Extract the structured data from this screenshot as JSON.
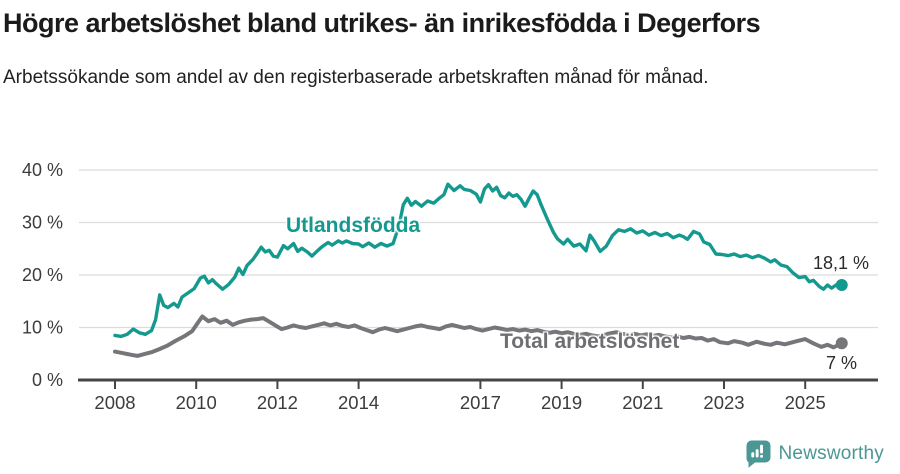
{
  "header": {
    "title": "Högre arbetslöshet bland utrikes- än inrikesfödda i Degerfors",
    "subtitle": "Arbetssökande som andel av den registerbaserade arbetskraften månad för månad."
  },
  "chart_data": {
    "type": "line",
    "title": "Högre arbetslöshet bland utrikes- än inrikesfödda i Degerfors",
    "subtitle": "Arbetssökande som andel av den registerbaserade arbetskraften månad för månad.",
    "unit": "%",
    "grid": true,
    "legend_position": "inline-labels",
    "colors": {
      "grid": "#dcdcdc",
      "axis": "#454545",
      "tick_text": "#3c3c3c",
      "accent_teal": "#14998f",
      "neutral_gray": "#76767a"
    },
    "y_axis": {
      "range": [
        0,
        40
      ],
      "ticks": [
        {
          "value": 0,
          "label": "0 %"
        },
        {
          "value": 10,
          "label": "10 %"
        },
        {
          "value": 20,
          "label": "20 %"
        },
        {
          "value": 30,
          "label": "30 %"
        },
        {
          "value": 40,
          "label": "40 %"
        }
      ]
    },
    "x_axis": {
      "range": [
        2007.1,
        2026.8
      ],
      "ticks": [
        {
          "value": 2008,
          "label": "2008"
        },
        {
          "value": 2010,
          "label": "2010"
        },
        {
          "value": 2012,
          "label": "2012"
        },
        {
          "value": 2014,
          "label": "2014"
        },
        {
          "value": 2017,
          "label": "2017"
        },
        {
          "value": 2019,
          "label": "2019"
        },
        {
          "value": 2021,
          "label": "2021"
        },
        {
          "value": 2023,
          "label": "2023"
        },
        {
          "value": 2025,
          "label": "2025"
        }
      ]
    },
    "series": [
      {
        "id": "utlandsfodda",
        "name": "Utlandsfödda",
        "color": "#14998f",
        "stroke_width": 3.4,
        "end_label": "18,1 %",
        "end_value": 18.1,
        "points": [
          [
            2008.0,
            8.5
          ],
          [
            2008.15,
            8.3
          ],
          [
            2008.3,
            8.7
          ],
          [
            2008.45,
            9.7
          ],
          [
            2008.6,
            9.0
          ],
          [
            2008.75,
            8.7
          ],
          [
            2008.9,
            9.4
          ],
          [
            2009.0,
            11.5
          ],
          [
            2009.1,
            16.2
          ],
          [
            2009.2,
            14.2
          ],
          [
            2009.3,
            13.8
          ],
          [
            2009.45,
            14.6
          ],
          [
            2009.55,
            13.9
          ],
          [
            2009.65,
            15.8
          ],
          [
            2009.8,
            16.6
          ],
          [
            2009.95,
            17.4
          ],
          [
            2010.1,
            19.4
          ],
          [
            2010.2,
            19.8
          ],
          [
            2010.3,
            18.5
          ],
          [
            2010.4,
            19.1
          ],
          [
            2010.5,
            18.3
          ],
          [
            2010.65,
            17.3
          ],
          [
            2010.8,
            18.2
          ],
          [
            2010.95,
            19.6
          ],
          [
            2011.05,
            21.3
          ],
          [
            2011.15,
            20.1
          ],
          [
            2011.25,
            21.8
          ],
          [
            2011.4,
            23.0
          ],
          [
            2011.5,
            24.1
          ],
          [
            2011.6,
            25.3
          ],
          [
            2011.7,
            24.4
          ],
          [
            2011.8,
            24.7
          ],
          [
            2011.9,
            23.6
          ],
          [
            2012.0,
            23.4
          ],
          [
            2012.15,
            25.6
          ],
          [
            2012.25,
            25.0
          ],
          [
            2012.4,
            26.0
          ],
          [
            2012.5,
            24.5
          ],
          [
            2012.6,
            25.1
          ],
          [
            2012.75,
            24.3
          ],
          [
            2012.85,
            23.6
          ],
          [
            2013.0,
            24.7
          ],
          [
            2013.1,
            25.4
          ],
          [
            2013.25,
            26.2
          ],
          [
            2013.35,
            25.7
          ],
          [
            2013.5,
            26.5
          ],
          [
            2013.6,
            26.1
          ],
          [
            2013.7,
            26.5
          ],
          [
            2013.85,
            26.0
          ],
          [
            2014.0,
            25.9
          ],
          [
            2014.1,
            25.4
          ],
          [
            2014.25,
            26.1
          ],
          [
            2014.4,
            25.3
          ],
          [
            2014.55,
            26.0
          ],
          [
            2014.7,
            25.5
          ],
          [
            2014.85,
            26.0
          ],
          [
            2015.0,
            29.5
          ],
          [
            2015.1,
            33.4
          ],
          [
            2015.2,
            34.6
          ],
          [
            2015.3,
            33.3
          ],
          [
            2015.4,
            34.0
          ],
          [
            2015.55,
            33.1
          ],
          [
            2015.7,
            34.1
          ],
          [
            2015.85,
            33.7
          ],
          [
            2016.0,
            34.7
          ],
          [
            2016.1,
            35.3
          ],
          [
            2016.2,
            37.3
          ],
          [
            2016.35,
            36.1
          ],
          [
            2016.5,
            37.0
          ],
          [
            2016.6,
            36.3
          ],
          [
            2016.75,
            36.1
          ],
          [
            2016.9,
            35.4
          ],
          [
            2017.0,
            33.9
          ],
          [
            2017.1,
            36.4
          ],
          [
            2017.2,
            37.2
          ],
          [
            2017.3,
            36.0
          ],
          [
            2017.4,
            36.7
          ],
          [
            2017.5,
            35.1
          ],
          [
            2017.6,
            34.7
          ],
          [
            2017.7,
            35.6
          ],
          [
            2017.8,
            35.0
          ],
          [
            2017.9,
            35.3
          ],
          [
            2018.0,
            34.4
          ],
          [
            2018.1,
            33.1
          ],
          [
            2018.2,
            34.6
          ],
          [
            2018.3,
            36.0
          ],
          [
            2018.4,
            35.3
          ],
          [
            2018.5,
            33.3
          ],
          [
            2018.65,
            30.6
          ],
          [
            2018.8,
            28.1
          ],
          [
            2018.9,
            26.9
          ],
          [
            2019.05,
            25.9
          ],
          [
            2019.15,
            26.8
          ],
          [
            2019.3,
            25.5
          ],
          [
            2019.45,
            25.9
          ],
          [
            2019.6,
            24.6
          ],
          [
            2019.7,
            27.6
          ],
          [
            2019.8,
            26.5
          ],
          [
            2019.95,
            24.5
          ],
          [
            2020.1,
            25.5
          ],
          [
            2020.25,
            27.5
          ],
          [
            2020.4,
            28.6
          ],
          [
            2020.55,
            28.3
          ],
          [
            2020.7,
            28.8
          ],
          [
            2020.85,
            28.0
          ],
          [
            2021.0,
            28.4
          ],
          [
            2021.15,
            27.6
          ],
          [
            2021.3,
            28.1
          ],
          [
            2021.45,
            27.5
          ],
          [
            2021.6,
            27.9
          ],
          [
            2021.75,
            27.1
          ],
          [
            2021.9,
            27.6
          ],
          [
            2022.0,
            27.3
          ],
          [
            2022.1,
            26.8
          ],
          [
            2022.25,
            28.3
          ],
          [
            2022.4,
            27.8
          ],
          [
            2022.5,
            26.3
          ],
          [
            2022.65,
            25.8
          ],
          [
            2022.8,
            24.0
          ],
          [
            2022.95,
            23.9
          ],
          [
            2023.1,
            23.7
          ],
          [
            2023.25,
            24.0
          ],
          [
            2023.4,
            23.5
          ],
          [
            2023.55,
            23.8
          ],
          [
            2023.7,
            23.3
          ],
          [
            2023.85,
            23.7
          ],
          [
            2024.0,
            23.2
          ],
          [
            2024.15,
            22.5
          ],
          [
            2024.25,
            22.9
          ],
          [
            2024.4,
            21.9
          ],
          [
            2024.55,
            21.6
          ],
          [
            2024.7,
            20.4
          ],
          [
            2024.85,
            19.5
          ],
          [
            2025.0,
            19.7
          ],
          [
            2025.1,
            18.7
          ],
          [
            2025.2,
            19.0
          ],
          [
            2025.35,
            17.8
          ],
          [
            2025.45,
            17.3
          ],
          [
            2025.55,
            18.1
          ],
          [
            2025.65,
            17.5
          ],
          [
            2025.8,
            18.3
          ],
          [
            2025.9,
            18.1
          ]
        ]
      },
      {
        "id": "total",
        "name": "Total arbetslöshet",
        "color": "#76767a",
        "stroke_width": 4,
        "end_label": "7 %",
        "end_value": 7,
        "points": [
          [
            2008.0,
            5.4
          ],
          [
            2008.2,
            5.1
          ],
          [
            2008.4,
            4.8
          ],
          [
            2008.55,
            4.6
          ],
          [
            2008.7,
            4.9
          ],
          [
            2008.9,
            5.3
          ],
          [
            2009.1,
            5.9
          ],
          [
            2009.3,
            6.6
          ],
          [
            2009.5,
            7.5
          ],
          [
            2009.7,
            8.3
          ],
          [
            2009.9,
            9.3
          ],
          [
            2010.05,
            11.0
          ],
          [
            2010.15,
            12.1
          ],
          [
            2010.3,
            11.2
          ],
          [
            2010.45,
            11.6
          ],
          [
            2010.6,
            10.9
          ],
          [
            2010.75,
            11.3
          ],
          [
            2010.9,
            10.5
          ],
          [
            2011.05,
            11.0
          ],
          [
            2011.2,
            11.3
          ],
          [
            2011.35,
            11.5
          ],
          [
            2011.5,
            11.6
          ],
          [
            2011.65,
            11.8
          ],
          [
            2011.8,
            11.1
          ],
          [
            2011.95,
            10.4
          ],
          [
            2012.1,
            9.7
          ],
          [
            2012.25,
            10.0
          ],
          [
            2012.4,
            10.4
          ],
          [
            2012.55,
            10.1
          ],
          [
            2012.7,
            9.9
          ],
          [
            2012.85,
            10.2
          ],
          [
            2013.0,
            10.5
          ],
          [
            2013.15,
            10.8
          ],
          [
            2013.3,
            10.4
          ],
          [
            2013.45,
            10.7
          ],
          [
            2013.6,
            10.3
          ],
          [
            2013.75,
            10.1
          ],
          [
            2013.9,
            10.4
          ],
          [
            2014.05,
            9.9
          ],
          [
            2014.2,
            9.5
          ],
          [
            2014.35,
            9.1
          ],
          [
            2014.5,
            9.6
          ],
          [
            2014.65,
            9.9
          ],
          [
            2014.8,
            9.6
          ],
          [
            2014.95,
            9.3
          ],
          [
            2015.1,
            9.6
          ],
          [
            2015.25,
            9.9
          ],
          [
            2015.4,
            10.2
          ],
          [
            2015.55,
            10.4
          ],
          [
            2015.7,
            10.1
          ],
          [
            2015.85,
            9.9
          ],
          [
            2016.0,
            9.7
          ],
          [
            2016.15,
            10.2
          ],
          [
            2016.3,
            10.5
          ],
          [
            2016.45,
            10.2
          ],
          [
            2016.6,
            9.9
          ],
          [
            2016.75,
            10.1
          ],
          [
            2016.9,
            9.7
          ],
          [
            2017.05,
            9.4
          ],
          [
            2017.2,
            9.7
          ],
          [
            2017.35,
            10.0
          ],
          [
            2017.5,
            9.8
          ],
          [
            2017.65,
            9.5
          ],
          [
            2017.8,
            9.7
          ],
          [
            2017.95,
            9.4
          ],
          [
            2018.1,
            9.6
          ],
          [
            2018.25,
            9.3
          ],
          [
            2018.4,
            9.5
          ],
          [
            2018.55,
            9.2
          ],
          [
            2018.7,
            9.0
          ],
          [
            2018.85,
            9.2
          ],
          [
            2019.0,
            8.9
          ],
          [
            2019.15,
            9.1
          ],
          [
            2019.3,
            8.8
          ],
          [
            2019.45,
            8.6
          ],
          [
            2019.6,
            8.8
          ],
          [
            2019.75,
            8.5
          ],
          [
            2019.9,
            8.3
          ],
          [
            2020.05,
            8.6
          ],
          [
            2020.2,
            8.9
          ],
          [
            2020.35,
            9.1
          ],
          [
            2020.5,
            8.8
          ],
          [
            2020.65,
            8.6
          ],
          [
            2020.8,
            8.8
          ],
          [
            2020.95,
            8.5
          ],
          [
            2021.1,
            8.7
          ],
          [
            2021.25,
            8.4
          ],
          [
            2021.4,
            8.6
          ],
          [
            2021.55,
            8.3
          ],
          [
            2021.7,
            8.1
          ],
          [
            2021.85,
            8.3
          ],
          [
            2022.0,
            8.0
          ],
          [
            2022.15,
            8.2
          ],
          [
            2022.3,
            7.9
          ],
          [
            2022.45,
            8.0
          ],
          [
            2022.6,
            7.5
          ],
          [
            2022.75,
            7.8
          ],
          [
            2022.9,
            7.2
          ],
          [
            2023.1,
            7.0
          ],
          [
            2023.25,
            7.4
          ],
          [
            2023.45,
            7.1
          ],
          [
            2023.6,
            6.7
          ],
          [
            2023.8,
            7.3
          ],
          [
            2024.0,
            6.9
          ],
          [
            2024.15,
            6.7
          ],
          [
            2024.3,
            7.1
          ],
          [
            2024.5,
            6.8
          ],
          [
            2024.65,
            7.1
          ],
          [
            2024.8,
            7.4
          ],
          [
            2025.0,
            7.8
          ],
          [
            2025.2,
            7.0
          ],
          [
            2025.4,
            6.3
          ],
          [
            2025.55,
            6.7
          ],
          [
            2025.7,
            6.2
          ],
          [
            2025.9,
            7.0
          ]
        ]
      }
    ]
  },
  "footer": {
    "brand": "Newsworthy",
    "brand_color": "#4a9795"
  }
}
